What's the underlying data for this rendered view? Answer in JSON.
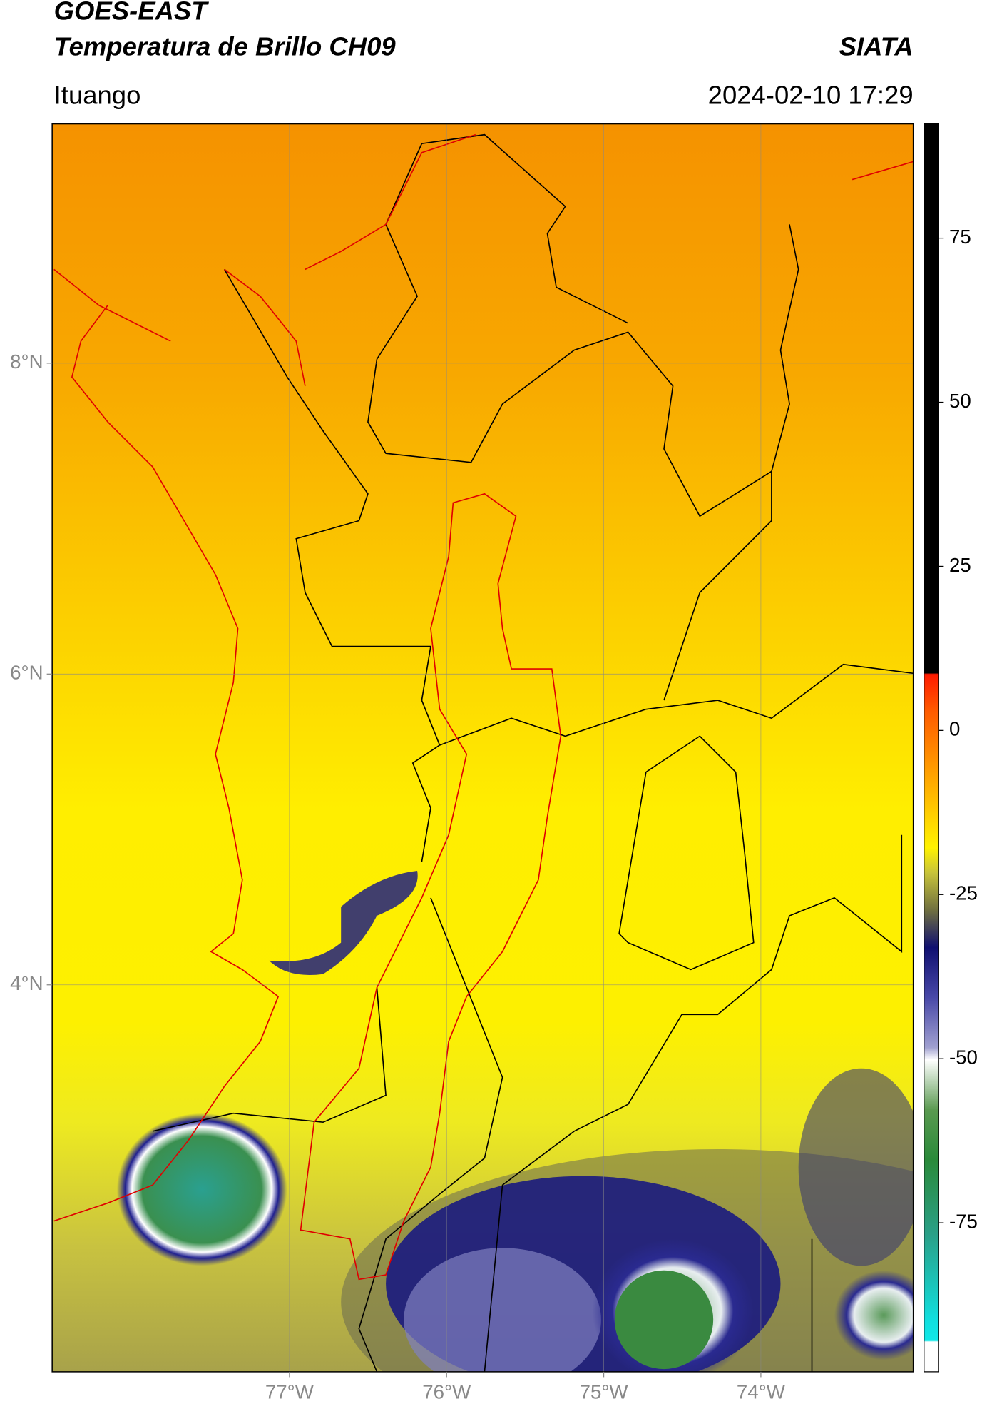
{
  "chart_data": {
    "type": "map",
    "title": "GOES-EAST",
    "subtitle": "Temperatura de Brillo CH09",
    "source": "SIATA",
    "location": "Ituango",
    "timestamp": "2024-02-10 17:29",
    "xlim": [
      -78.51,
      -73.03
    ],
    "ylim": [
      1.51,
      9.54
    ],
    "xticks": [
      {
        "value": -77,
        "label": "77°W"
      },
      {
        "value": -76,
        "label": "76°W"
      },
      {
        "value": -75,
        "label": "75°W"
      },
      {
        "value": -74,
        "label": "74°W"
      }
    ],
    "yticks": [
      {
        "value": 4,
        "label": "4°N"
      },
      {
        "value": 6,
        "label": "6°N"
      },
      {
        "value": 8,
        "label": "8°N"
      }
    ],
    "grid": true,
    "colorbar": {
      "lim": [
        -97.7,
        92.4
      ],
      "ticks": [
        -75,
        -50,
        -25,
        0,
        25,
        50,
        75
      ]
    }
  }
}
